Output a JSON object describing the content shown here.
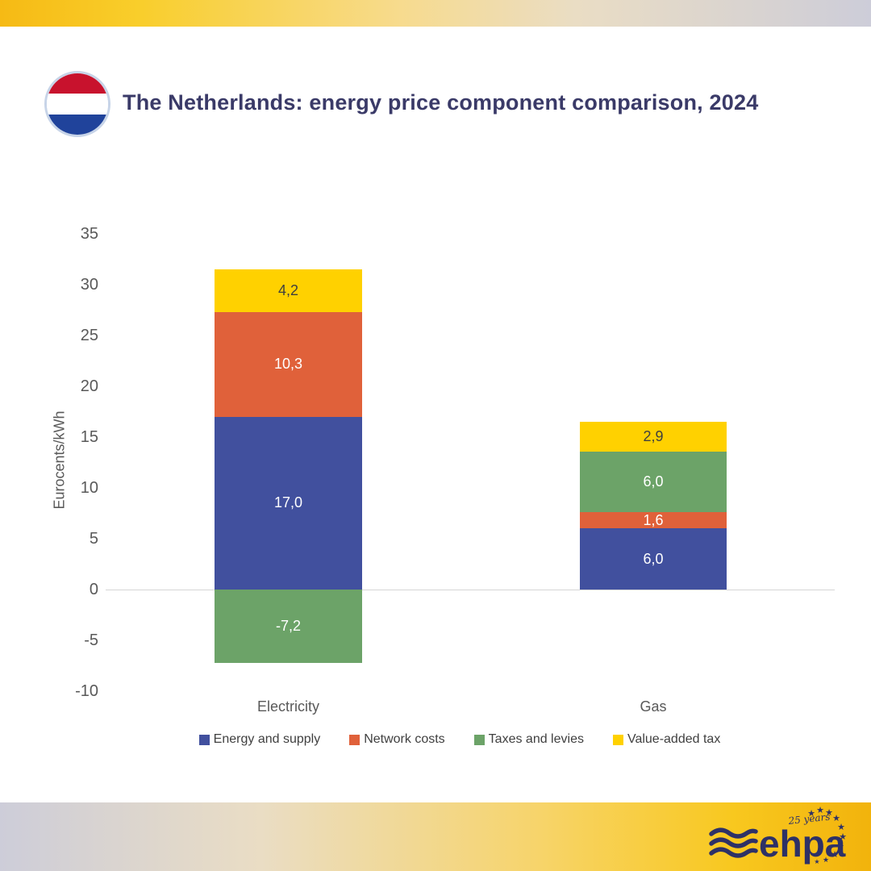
{
  "header": {
    "title": "The Netherlands: energy price component comparison, 2024",
    "flag_icon": "netherlands-flag"
  },
  "chart_data": {
    "type": "bar",
    "stacked": true,
    "title": "The Netherlands: energy price component comparison, 2024",
    "categories": [
      "Electricity",
      "Gas"
    ],
    "series": [
      {
        "name": "Energy and supply",
        "color": "#41509E",
        "label_color": "#FFFFFF",
        "values": [
          17.0,
          6.0
        ]
      },
      {
        "name": "Network costs",
        "color": "#E0613A",
        "label_color": "#FFFFFF",
        "values": [
          10.3,
          1.6
        ]
      },
      {
        "name": "Taxes and levies",
        "color": "#6CA368",
        "label_color": "#FFFFFF",
        "values": [
          -7.2,
          6.0
        ]
      },
      {
        "name": "Value-added tax",
        "color": "#FFD100",
        "label_color": "#3F3F3F",
        "values": [
          4.2,
          2.9
        ]
      }
    ],
    "data_labels": {
      "Electricity": {
        "Energy and supply": "17,0",
        "Network costs": "10,3",
        "Taxes and levies": "-7,2",
        "Value-added tax": "4,2"
      },
      "Gas": {
        "Energy and supply": "6,0",
        "Network costs": "1,6",
        "Taxes and levies": "6,0",
        "Value-added tax": "2,9"
      }
    },
    "xlabel": "",
    "ylabel": "Eurocents/kWh",
    "ylim": [
      -10,
      35
    ],
    "ytick_step": 5,
    "ytick_labels": [
      "35",
      "30",
      "25",
      "20",
      "15",
      "10",
      "5",
      "0",
      "-5",
      "-10"
    ],
    "decimal_separator": ",",
    "grid": false,
    "legend_position": "bottom",
    "axis_color": "#595959",
    "zero_line_color": "#D6D6D6"
  },
  "footer": {
    "logo_text": "ehpa",
    "logo_badge": "25 years",
    "logo_color": "#2E3166"
  }
}
